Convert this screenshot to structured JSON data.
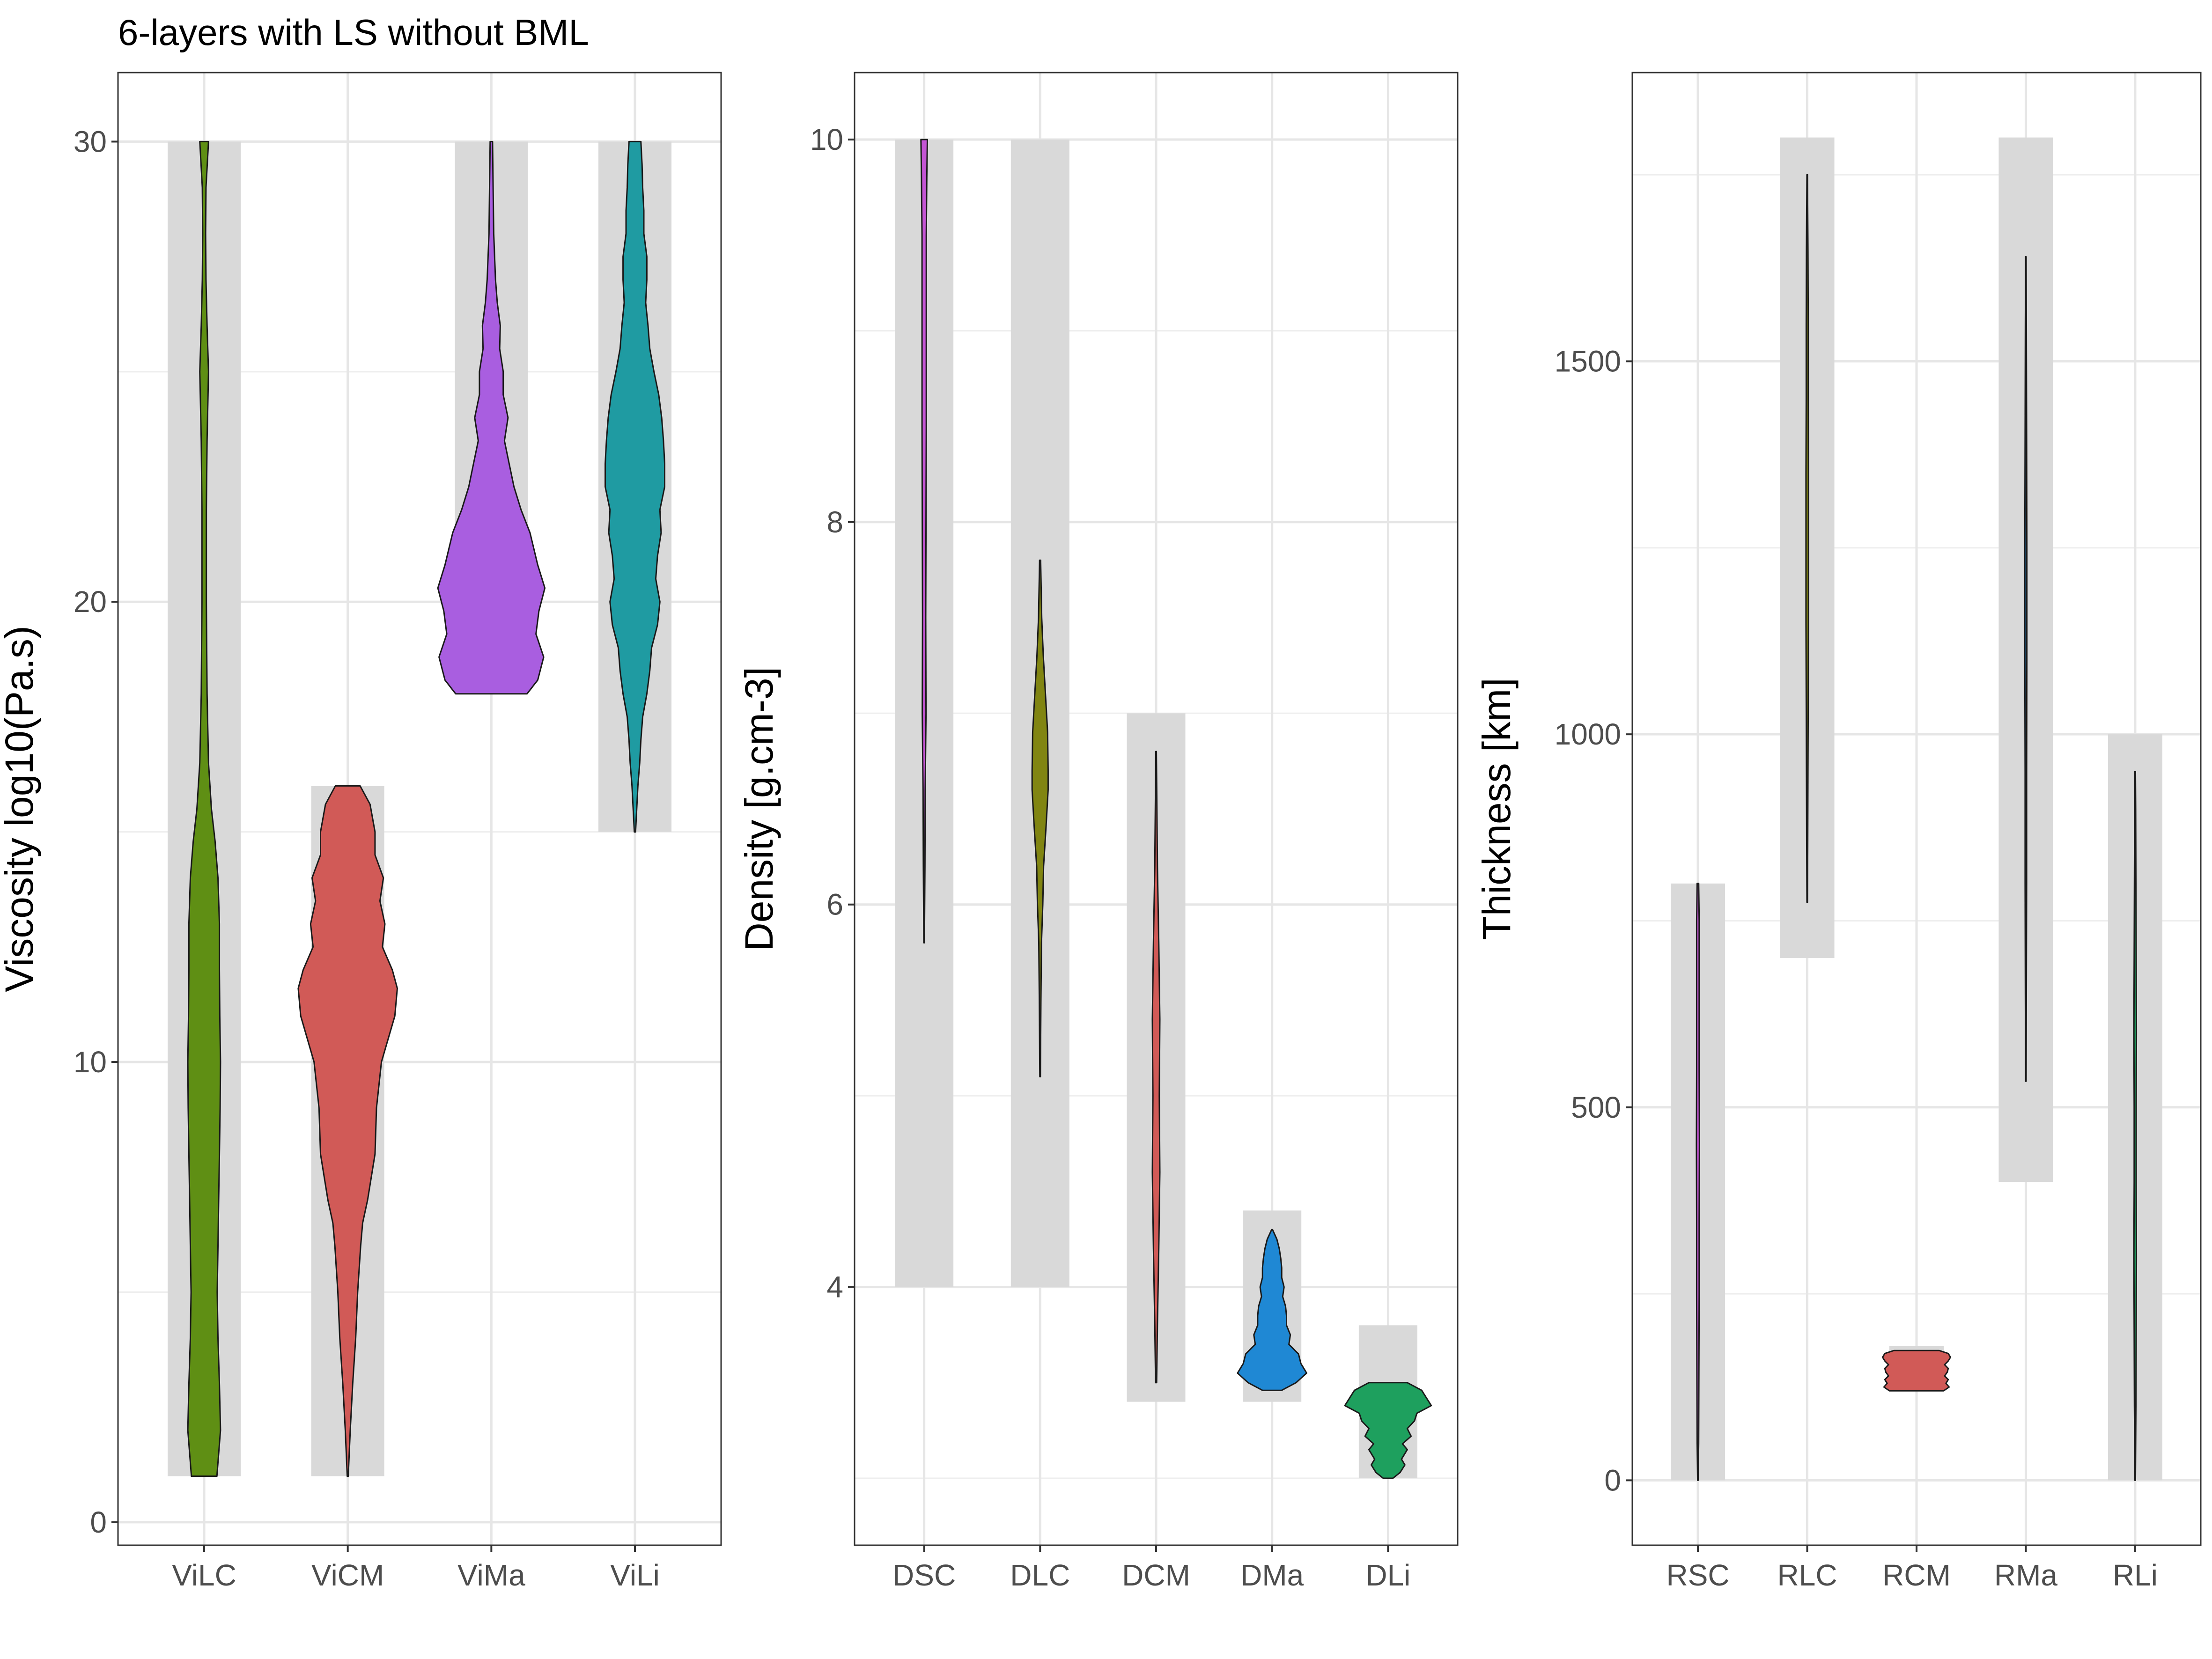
{
  "title": "6-layers with LS without BML",
  "colors": {
    "background": "#ffffff",
    "range_band": "#d9d9d9",
    "grid": "#ebebeb",
    "border": "#333333"
  },
  "chart_data": [
    {
      "type": "violin",
      "name": "viscosity",
      "ylabel": "Viscosity log10(Pa.s)",
      "ylim": [
        -0.5,
        31.5
      ],
      "yticks": [
        0,
        10,
        20,
        30
      ],
      "ytick_labels": [
        "0",
        "10",
        "20",
        "30"
      ],
      "yminor": [
        5,
        15,
        25
      ],
      "categories": [
        "ViLC",
        "ViCM",
        "ViMa",
        "ViLi"
      ],
      "series": [
        {
          "name": "ViLC",
          "color": "#5f8f14",
          "range": [
            1,
            30
          ],
          "width_scale": 0.55,
          "profile": [
            [
              1,
              0.35
            ],
            [
              2,
              0.45
            ],
            [
              3,
              0.42
            ],
            [
              4,
              0.38
            ],
            [
              5,
              0.36
            ],
            [
              6,
              0.38
            ],
            [
              7,
              0.4
            ],
            [
              8,
              0.42
            ],
            [
              9,
              0.44
            ],
            [
              10,
              0.45
            ],
            [
              11,
              0.43
            ],
            [
              12,
              0.42
            ],
            [
              13,
              0.42
            ],
            [
              14,
              0.38
            ],
            [
              14.8,
              0.3
            ],
            [
              15.5,
              0.2
            ],
            [
              16.5,
              0.12
            ],
            [
              18,
              0.08
            ],
            [
              20,
              0.06
            ],
            [
              22,
              0.06
            ],
            [
              23.5,
              0.08
            ],
            [
              25,
              0.12
            ],
            [
              26,
              0.08
            ],
            [
              27,
              0.05
            ],
            [
              28,
              0.04
            ],
            [
              29,
              0.05
            ],
            [
              30,
              0.12
            ]
          ]
        },
        {
          "name": "ViCM",
          "color": "#d15a57",
          "range": [
            1,
            16
          ],
          "width_scale": 0.75,
          "profile": [
            [
              1,
              0.01
            ],
            [
              2,
              0.05
            ],
            [
              3,
              0.1
            ],
            [
              4,
              0.16
            ],
            [
              5,
              0.2
            ],
            [
              6,
              0.26
            ],
            [
              6.5,
              0.3
            ],
            [
              7,
              0.4
            ],
            [
              8,
              0.55
            ],
            [
              9,
              0.58
            ],
            [
              10,
              0.68
            ],
            [
              11,
              0.95
            ],
            [
              11.6,
              1.0
            ],
            [
              12,
              0.9
            ],
            [
              12.5,
              0.7
            ],
            [
              13,
              0.75
            ],
            [
              13.5,
              0.65
            ],
            [
              14,
              0.72
            ],
            [
              14.5,
              0.55
            ],
            [
              15,
              0.55
            ],
            [
              15.6,
              0.45
            ],
            [
              16,
              0.25
            ]
          ]
        },
        {
          "name": "ViMa",
          "color": "#a95ee0",
          "range": [
            18,
            30
          ],
          "width_scale": 0.9,
          "profile": [
            [
              18,
              0.6
            ],
            [
              18.3,
              0.78
            ],
            [
              18.8,
              0.88
            ],
            [
              19.3,
              0.75
            ],
            [
              19.8,
              0.8
            ],
            [
              20.3,
              0.9
            ],
            [
              20.8,
              0.78
            ],
            [
              21.5,
              0.65
            ],
            [
              22,
              0.5
            ],
            [
              22.5,
              0.38
            ],
            [
              23,
              0.3
            ],
            [
              23.5,
              0.22
            ],
            [
              24,
              0.28
            ],
            [
              24.5,
              0.2
            ],
            [
              25,
              0.2
            ],
            [
              25.5,
              0.14
            ],
            [
              26,
              0.15
            ],
            [
              26.5,
              0.1
            ],
            [
              27,
              0.07
            ],
            [
              28,
              0.04
            ],
            [
              29,
              0.03
            ],
            [
              30,
              0.02
            ]
          ]
        },
        {
          "name": "ViLi",
          "color": "#1f9ba2",
          "range": [
            15,
            30
          ],
          "width_scale": 0.9,
          "profile": [
            [
              15,
              0.01
            ],
            [
              16,
              0.05
            ],
            [
              16.5,
              0.08
            ],
            [
              17,
              0.1
            ],
            [
              17.5,
              0.13
            ],
            [
              18,
              0.2
            ],
            [
              18.5,
              0.25
            ],
            [
              19,
              0.28
            ],
            [
              19.5,
              0.38
            ],
            [
              20,
              0.42
            ],
            [
              20.5,
              0.35
            ],
            [
              21,
              0.38
            ],
            [
              21.5,
              0.44
            ],
            [
              22,
              0.42
            ],
            [
              22.5,
              0.5
            ],
            [
              23,
              0.5
            ],
            [
              23.5,
              0.48
            ],
            [
              24,
              0.45
            ],
            [
              24.5,
              0.4
            ],
            [
              25,
              0.32
            ],
            [
              25.5,
              0.25
            ],
            [
              26,
              0.22
            ],
            [
              26.5,
              0.18
            ],
            [
              27,
              0.2
            ],
            [
              27.5,
              0.2
            ],
            [
              28,
              0.15
            ],
            [
              28.5,
              0.15
            ],
            [
              29,
              0.13
            ],
            [
              29.5,
              0.12
            ],
            [
              30,
              0.1
            ]
          ]
        }
      ]
    },
    {
      "type": "violin",
      "name": "density",
      "ylabel": "Density [g.cm-3]",
      "ylim": [
        2.65,
        10.35
      ],
      "yticks": [
        4,
        6,
        8,
        10
      ],
      "ytick_labels": [
        "4",
        "6",
        "8",
        "10"
      ],
      "yminor": [
        3,
        5,
        7,
        9
      ],
      "categories": [
        "DSC",
        "DLC",
        "DCM",
        "DMa",
        "DLi"
      ],
      "series": [
        {
          "name": "DSC",
          "color": "#c455d4",
          "range": [
            4,
            10
          ],
          "width_scale": 0.5,
          "profile": [
            [
              5.8,
              0.01
            ],
            [
              6.2,
              0.03
            ],
            [
              6.6,
              0.04
            ],
            [
              7,
              0.07
            ],
            [
              7.5,
              0.06
            ],
            [
              8,
              0.07
            ],
            [
              8.5,
              0.08
            ],
            [
              9,
              0.08
            ],
            [
              9.5,
              0.08
            ],
            [
              9.8,
              0.1
            ],
            [
              10,
              0.12
            ]
          ]
        },
        {
          "name": "DLC",
          "color": "#818512",
          "range": [
            4,
            10
          ],
          "width_scale": 0.5,
          "profile": [
            [
              5.1,
              0.01
            ],
            [
              5.5,
              0.03
            ],
            [
              5.8,
              0.05
            ],
            [
              6,
              0.1
            ],
            [
              6.2,
              0.13
            ],
            [
              6.4,
              0.22
            ],
            [
              6.6,
              0.3
            ],
            [
              6.7,
              0.3
            ],
            [
              6.9,
              0.28
            ],
            [
              7.1,
              0.2
            ],
            [
              7.3,
              0.12
            ],
            [
              7.5,
              0.06
            ],
            [
              7.8,
              0.02
            ]
          ]
        },
        {
          "name": "DCM",
          "color": "#d15a57",
          "range": [
            3.4,
            7
          ],
          "width_scale": 0.5,
          "profile": [
            [
              3.5,
              0.02
            ],
            [
              3.8,
              0.05
            ],
            [
              4.2,
              0.1
            ],
            [
              4.6,
              0.14
            ],
            [
              5,
              0.12
            ],
            [
              5.4,
              0.14
            ],
            [
              5.8,
              0.1
            ],
            [
              6.2,
              0.05
            ],
            [
              6.5,
              0.03
            ],
            [
              6.8,
              0.01
            ]
          ]
        },
        {
          "name": "DMa",
          "color": "#1f88d4",
          "range": [
            3.4,
            4.4
          ],
          "width_scale": 0.9,
          "profile": [
            [
              3.46,
              0.2
            ],
            [
              3.5,
              0.5
            ],
            [
              3.55,
              0.72
            ],
            [
              3.6,
              0.6
            ],
            [
              3.65,
              0.55
            ],
            [
              3.7,
              0.35
            ],
            [
              3.75,
              0.38
            ],
            [
              3.8,
              0.3
            ],
            [
              3.85,
              0.3
            ],
            [
              3.9,
              0.28
            ],
            [
              3.95,
              0.22
            ],
            [
              4,
              0.25
            ],
            [
              4.05,
              0.2
            ],
            [
              4.1,
              0.2
            ],
            [
              4.15,
              0.18
            ],
            [
              4.2,
              0.15
            ],
            [
              4.25,
              0.1
            ],
            [
              4.3,
              0.01
            ]
          ]
        },
        {
          "name": "DLi",
          "color": "#1ea05e",
          "range": [
            3,
            3.8
          ],
          "width_scale": 0.9,
          "profile": [
            [
              3,
              0.1
            ],
            [
              3.03,
              0.25
            ],
            [
              3.07,
              0.35
            ],
            [
              3.1,
              0.28
            ],
            [
              3.15,
              0.4
            ],
            [
              3.18,
              0.3
            ],
            [
              3.22,
              0.48
            ],
            [
              3.26,
              0.4
            ],
            [
              3.3,
              0.55
            ],
            [
              3.34,
              0.6
            ],
            [
              3.38,
              0.9
            ],
            [
              3.42,
              0.8
            ],
            [
              3.46,
              0.7
            ],
            [
              3.5,
              0.4
            ]
          ]
        }
      ]
    },
    {
      "type": "violin",
      "name": "thickness",
      "ylabel": "Thickness [km]",
      "ylim": [
        -87,
        1887
      ],
      "yticks": [
        0,
        500,
        1000,
        1500
      ],
      "ytick_labels": [
        "0",
        "500",
        "1000",
        "1500"
      ],
      "yminor": [
        250,
        750,
        1250,
        1750
      ],
      "categories": [
        "RSC",
        "RLC",
        "RCM",
        "RMa",
        "RLi"
      ],
      "series": [
        {
          "name": "RSC",
          "color": "#c455d4",
          "range": [
            0,
            800
          ],
          "width_scale": 0.5,
          "profile": [
            [
              0,
              0.01
            ],
            [
              50,
              0.03
            ],
            [
              150,
              0.04
            ],
            [
              250,
              0.05
            ],
            [
              350,
              0.05
            ],
            [
              450,
              0.06
            ],
            [
              550,
              0.05
            ],
            [
              650,
              0.05
            ],
            [
              750,
              0.05
            ],
            [
              800,
              0.03
            ]
          ]
        },
        {
          "name": "RLC",
          "color": "#818512",
          "range": [
            700,
            1800
          ],
          "width_scale": 0.5,
          "profile": [
            [
              775,
              0.01
            ],
            [
              850,
              0.02
            ],
            [
              950,
              0.03
            ],
            [
              1050,
              0.04
            ],
            [
              1150,
              0.05
            ],
            [
              1250,
              0.05
            ],
            [
              1350,
              0.05
            ],
            [
              1450,
              0.04
            ],
            [
              1550,
              0.04
            ],
            [
              1650,
              0.03
            ],
            [
              1750,
              0.01
            ]
          ]
        },
        {
          "name": "RCM",
          "color": "#d15a57",
          "range": [
            120,
            180
          ],
          "width_scale": 0.9,
          "profile": [
            [
              120,
              0.6
            ],
            [
              125,
              0.72
            ],
            [
              130,
              0.65
            ],
            [
              135,
              0.7
            ],
            [
              140,
              0.62
            ],
            [
              145,
              0.68
            ],
            [
              150,
              0.7
            ],
            [
              155,
              0.62
            ],
            [
              160,
              0.7
            ],
            [
              165,
              0.75
            ],
            [
              170,
              0.7
            ],
            [
              174,
              0.5
            ]
          ]
        },
        {
          "name": "RMa",
          "color": "#1f88d4",
          "range": [
            400,
            1800
          ],
          "width_scale": 0.5,
          "profile": [
            [
              535,
              0.01
            ],
            [
              650,
              0.02
            ],
            [
              800,
              0.03
            ],
            [
              950,
              0.03
            ],
            [
              1100,
              0.04
            ],
            [
              1250,
              0.04
            ],
            [
              1400,
              0.03
            ],
            [
              1550,
              0.02
            ],
            [
              1640,
              0.01
            ]
          ]
        },
        {
          "name": "RLi",
          "color": "#1ea05e",
          "range": [
            0,
            1000
          ],
          "width_scale": 0.5,
          "profile": [
            [
              0,
              0.01
            ],
            [
              100,
              0.03
            ],
            [
              200,
              0.04
            ],
            [
              300,
              0.05
            ],
            [
              400,
              0.04
            ],
            [
              500,
              0.04
            ],
            [
              600,
              0.05
            ],
            [
              700,
              0.04
            ],
            [
              800,
              0.03
            ],
            [
              900,
              0.02
            ],
            [
              950,
              0.01
            ]
          ]
        }
      ]
    }
  ]
}
